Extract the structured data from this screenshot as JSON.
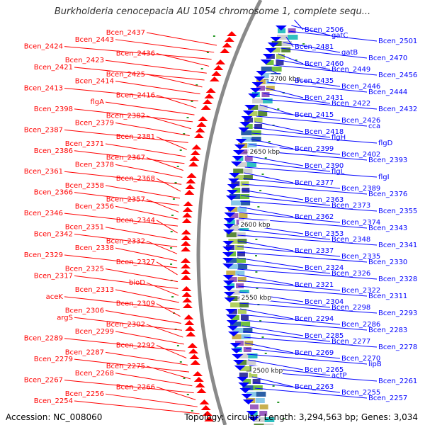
{
  "title": "Burkholderia cenocepacia AU 1054 chromosome 1, complete sequ...",
  "footer": {
    "accession": "Accession: NC_008060",
    "summary": "Topology: circular; Length: 3,294,563 bp; Genes: 3,034"
  },
  "colors": {
    "forward": "#ff0000",
    "reverse": "#0000ff",
    "backbone": "#888888"
  },
  "ticks": [
    "2700 kbp",
    "2650 kbp",
    "2600 kbp",
    "2550 kbp",
    "2500 kbp"
  ],
  "left_labels": [
    "Bcen_2437",
    "Bcen_2443",
    "Bcen_2424",
    "Bcen_2436",
    "Bcen_2423",
    "Bcen_2421",
    "Bcen_2425",
    "Bcen_2414",
    "Bcen_2413",
    "Bcen_2416",
    "flgA",
    "Bcen_2398",
    "Bcen_2382",
    "Bcen_2379",
    "Bcen_2387",
    "Bcen_2381",
    "Bcen_2371",
    "Bcen_2386",
    "Bcen_2367",
    "Bcen_2378",
    "Bcen_2361",
    "Bcen_2368",
    "Bcen_2358",
    "Bcen_2366",
    "Bcen_2357",
    "Bcen_2356",
    "Bcen_2346",
    "Bcen_2344",
    "Bcen_2351",
    "Bcen_2342",
    "Bcen_2332",
    "Bcen_2338",
    "Bcen_2329",
    "Bcen_2327",
    "Bcen_2325",
    "Bcen_2317",
    "bioD",
    "Bcen_2313",
    "aceK",
    "Bcen_2309",
    "Bcen_2306",
    "argS",
    "Bcen_2302",
    "Bcen_2299",
    "Bcen_2289",
    "Bcen_2292",
    "Bcen_2287",
    "Bcen_2279",
    "Bcen_2275",
    "Bcen_2268",
    "Bcen_2267",
    "Bcen_2266",
    "Bcen_2256",
    "Bcen_2254"
  ],
  "right_labels": [
    "Bcen_2506",
    "gatC",
    "Bcen_2501",
    "Bcen_2481",
    "gatB",
    "Bcen_2470",
    "Bcen_2460",
    "Bcen_2449",
    "Bcen_2456",
    "Bcen_2435",
    "Bcen_2446",
    "Bcen_2444",
    "Bcen_2431",
    "Bcen_2422",
    "Bcen_2432",
    "Bcen_2415",
    "Bcen_2426",
    "cca",
    "Bcen_2418",
    "flgH",
    "flgD",
    "Bcen_2399",
    "Bcen_2402",
    "Bcen_2393",
    "Bcen_2390",
    "flgL",
    "flgI",
    "Bcen_2377",
    "Bcen_2389",
    "Bcen_2376",
    "Bcen_2363",
    "Bcen_2373",
    "Bcen_2355",
    "Bcen_2362",
    "Bcen_2374",
    "Bcen_2343",
    "Bcen_2353",
    "Bcen_2348",
    "Bcen_2341",
    "Bcen_2337",
    "Bcen_2335",
    "Bcen_2330",
    "Bcen_2324",
    "Bcen_2326",
    "Bcen_2328",
    "Bcen_2321",
    "Bcen_2322",
    "Bcen_2311",
    "Bcen_2304",
    "Bcen_2298",
    "Bcen_2293",
    "Bcen_2294",
    "Bcen_2286",
    "Bcen_2283",
    "Bcen_2285",
    "Bcen_2277",
    "Bcen_2278",
    "Bcen_2269",
    "Bcen_2270",
    "lipB",
    "Bcen_2265",
    "actP",
    "Bcen_2261",
    "Bcen_2263",
    "Bcen_2255",
    "Bcen_2257"
  ]
}
